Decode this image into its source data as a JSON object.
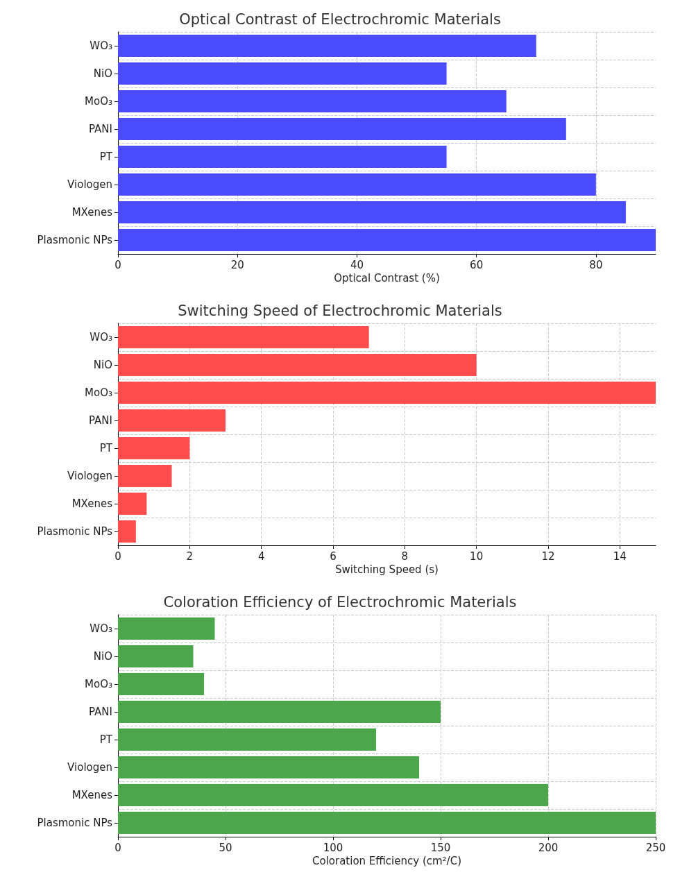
{
  "chart_data": [
    {
      "type": "bar",
      "orientation": "horizontal",
      "title": "Optical Contrast of Electrochromic Materials",
      "xlabel": "Optical Contrast (%)",
      "categories": [
        "WO₃",
        "NiO",
        "MoO₃",
        "PANI",
        "PT",
        "Viologen",
        "MXenes",
        "Plasmonic NPs"
      ],
      "values": [
        70,
        55,
        65,
        75,
        55,
        80,
        85,
        90
      ],
      "color": "#4c4cff",
      "xlim": [
        0,
        90
      ],
      "xticks": [
        0,
        20,
        40,
        60,
        80
      ],
      "grid": true
    },
    {
      "type": "bar",
      "orientation": "horizontal",
      "title": "Switching Speed of Electrochromic Materials",
      "xlabel": "Switching Speed (s)",
      "categories": [
        "WO₃",
        "NiO",
        "MoO₃",
        "PANI",
        "PT",
        "Viologen",
        "MXenes",
        "Plasmonic NPs"
      ],
      "values": [
        7,
        10,
        15,
        3,
        2,
        1.5,
        0.8,
        0.5
      ],
      "color": "#ff4c4c",
      "xlim": [
        0,
        15
      ],
      "xticks": [
        0,
        2,
        4,
        6,
        8,
        10,
        12,
        14
      ],
      "grid": true
    },
    {
      "type": "bar",
      "orientation": "horizontal",
      "title": "Coloration Efficiency of Electrochromic Materials",
      "xlabel": "Coloration Efficiency (cm²/C)",
      "categories": [
        "WO₃",
        "NiO",
        "MoO₃",
        "PANI",
        "PT",
        "Viologen",
        "MXenes",
        "Plasmonic NPs"
      ],
      "values": [
        45,
        35,
        40,
        150,
        120,
        140,
        200,
        250
      ],
      "color": "#4ca64c",
      "xlim": [
        0,
        250
      ],
      "xticks": [
        0,
        50,
        100,
        150,
        200,
        250
      ],
      "grid": true
    }
  ]
}
